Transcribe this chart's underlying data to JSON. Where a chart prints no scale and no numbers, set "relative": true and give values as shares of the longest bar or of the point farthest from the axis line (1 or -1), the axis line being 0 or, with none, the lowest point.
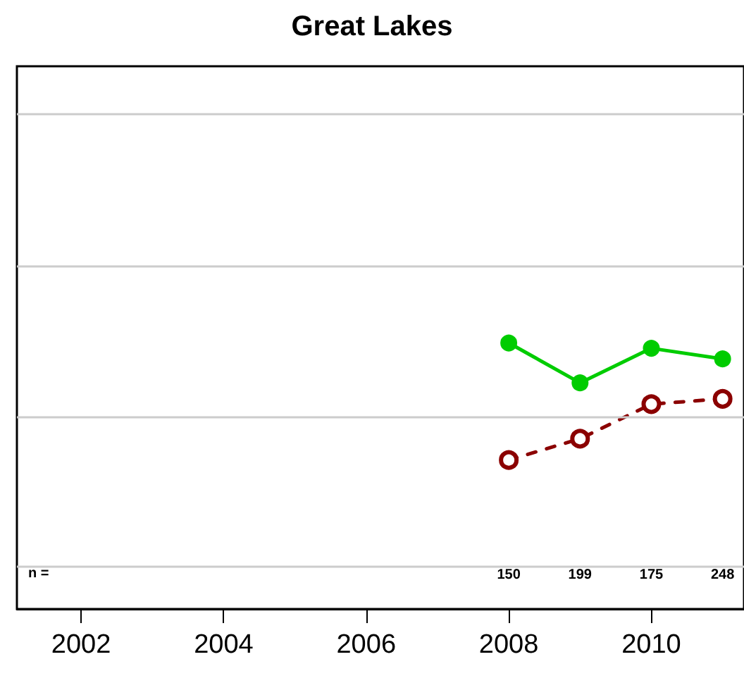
{
  "chart_data": {
    "type": "line",
    "title": "Great Lakes",
    "relative": true,
    "x": [
      2008,
      2009,
      2010,
      2011
    ],
    "xlim": [
      2001.1,
      2011.3
    ],
    "xticks": [
      2002,
      2004,
      2006,
      2008,
      2010
    ],
    "marker": "circle",
    "series": [
      {
        "color": "#00cc00",
        "values": [
          1,
          0.85,
          0.98,
          0.94
        ],
        "line_style": "solid"
      },
      {
        "color": "#8b0000",
        "values": [
          0.56,
          0.64,
          0.77,
          0.79
        ],
        "line_style": "dashed"
      }
    ],
    "ref_lines": [
      {
        "axis": "y",
        "value": 0.157,
        "color": "#cccccc"
      },
      {
        "axis": "y",
        "value": 0.724,
        "color": "#cccccc"
      },
      {
        "axis": "y",
        "value": 1.29,
        "color": "#cccccc"
      },
      {
        "axis": "y",
        "value": 1.857,
        "color": "#cccccc"
      }
    ],
    "annotations": [
      "n =",
      "150",
      "199",
      "175",
      "248"
    ]
  }
}
